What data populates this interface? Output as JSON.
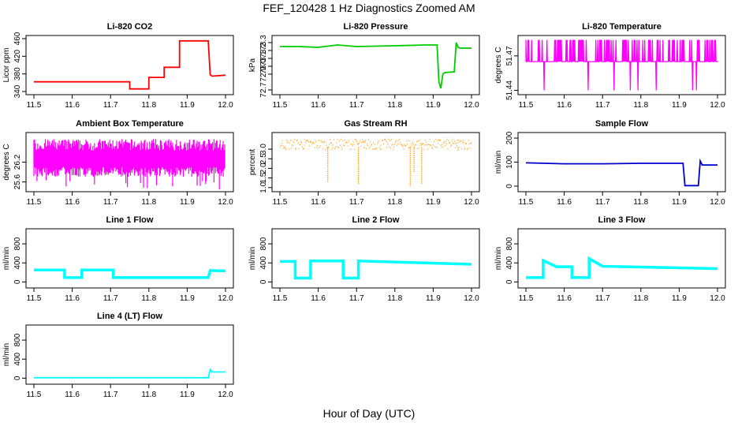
{
  "figure": {
    "title": "FEF_120428  1 Hz Diagnostics Zoomed AM",
    "xlabel": "Hour of Day (UTC)"
  },
  "chart_data": [
    {
      "type": "line",
      "title": "Li-820 CO2",
      "ylabel": "Licor ppm",
      "color": "#ff0000",
      "xlim": [
        11.5,
        12.0
      ],
      "ylim": [
        340,
        460
      ],
      "xticks": [
        "11.5",
        "11.6",
        "11.7",
        "11.8",
        "11.9",
        "12.0"
      ],
      "yticks": [
        "340",
        "380",
        "420",
        "460"
      ],
      "series": [
        {
          "name": "CO2",
          "x": [
            11.5,
            11.75,
            11.75,
            11.8,
            11.8,
            11.84,
            11.84,
            11.88,
            11.88,
            11.955,
            11.96,
            11.965,
            12.0
          ],
          "y": [
            362,
            362,
            346,
            346,
            372,
            372,
            395,
            395,
            455,
            455,
            378,
            375,
            377
          ]
        }
      ]
    },
    {
      "type": "line",
      "title": "Li-820 Pressure",
      "ylabel": "kPa",
      "color": "#00cc00",
      "xlim": [
        11.5,
        12.0
      ],
      "ylim": [
        72.68,
        73.35
      ],
      "xticks": [
        "11.5",
        "11.6",
        "11.7",
        "11.8",
        "11.9",
        "12.0"
      ],
      "yticks": [
        "72.7",
        "72.9",
        "73.0",
        "73.1",
        "73.2",
        "73.3"
      ],
      "series": [
        {
          "name": "Pressure",
          "x": [
            11.5,
            11.55,
            11.6,
            11.65,
            11.7,
            11.8,
            11.88,
            11.91,
            11.915,
            11.92,
            11.925,
            11.93,
            11.955,
            11.96,
            11.965,
            11.97,
            12.0
          ],
          "y": [
            73.25,
            73.25,
            73.24,
            73.27,
            73.25,
            73.26,
            73.27,
            73.27,
            72.8,
            72.72,
            72.9,
            72.92,
            72.93,
            73.3,
            73.24,
            73.23,
            73.23
          ]
        }
      ]
    },
    {
      "type": "line",
      "title": "Li-820 Temperature",
      "ylabel": "degrees C",
      "color": "#ff00ff",
      "xlim": [
        11.5,
        12.0
      ],
      "ylim": [
        51.439,
        51.485
      ],
      "xticks": [
        "11.5",
        "11.6",
        "11.7",
        "11.8",
        "11.9",
        "12.0"
      ],
      "yticks": [
        "51.44",
        "51.47"
      ],
      "series": [
        {
          "name": "Temperature",
          "x": [
            11.5,
            12.0
          ],
          "y": [
            51.465,
            51.465
          ]
        }
      ]
    },
    {
      "type": "line",
      "title": "Ambient Box Temperature",
      "ylabel": "degrees C",
      "color": "#ff00ff",
      "xlim": [
        11.5,
        12.0
      ],
      "ylim": [
        25.4,
        27.0
      ],
      "xticks": [
        "11.5",
        "11.6",
        "11.7",
        "11.8",
        "11.9",
        "12.0"
      ],
      "yticks": [
        "25.6",
        "26.2"
      ],
      "series": [
        {
          "name": "Box Temp",
          "x": [
            11.5,
            12.0
          ],
          "y": [
            26.3,
            26.3
          ]
        }
      ]
    },
    {
      "type": "scatter",
      "title": "Gas Stream RH",
      "ylabel": "percent",
      "color": "#ff9900",
      "xlim": [
        11.5,
        12.0
      ],
      "ylim": [
        0.95,
        3.7
      ],
      "xticks": [
        "11.5",
        "11.6",
        "11.7",
        "11.8",
        "11.9",
        "12.0"
      ],
      "yticks": [
        "1.0",
        "1.5",
        "2.0",
        "2.5",
        "3.0"
      ],
      "series": [
        {
          "name": "RH",
          "x": [
            11.5,
            12.0
          ],
          "y": [
            3.2,
            3.2
          ]
        }
      ]
    },
    {
      "type": "line",
      "title": "Sample Flow",
      "ylabel": "ml/min",
      "color": "#0000cc",
      "xlim": [
        11.5,
        12.0
      ],
      "ylim": [
        -10,
        210
      ],
      "xticks": [
        "11.5",
        "11.6",
        "11.7",
        "11.8",
        "11.9",
        "12.0"
      ],
      "yticks": [
        "0",
        "100",
        "200"
      ],
      "series": [
        {
          "name": "Sample Flow",
          "x": [
            11.5,
            11.6,
            11.7,
            11.8,
            11.91,
            11.915,
            11.95,
            11.955,
            11.96,
            12.0
          ],
          "y": [
            97,
            93,
            93,
            95,
            95,
            2,
            2,
            105,
            88,
            88
          ]
        }
      ]
    },
    {
      "type": "line",
      "title": "Line 1 Flow",
      "ylabel": "ml/min",
      "color": "#00ffff",
      "xlim": [
        11.5,
        12.0
      ],
      "ylim": [
        -60,
        1050
      ],
      "xticks": [
        "11.5",
        "11.6",
        "11.7",
        "11.8",
        "11.9",
        "12.0"
      ],
      "yticks": [
        "0",
        "400",
        "800"
      ],
      "series": [
        {
          "name": "Line 1",
          "x": [
            11.5,
            11.58,
            11.58,
            11.625,
            11.625,
            11.707,
            11.707,
            11.955,
            11.96,
            12.0
          ],
          "y": [
            250,
            250,
            90,
            90,
            250,
            250,
            90,
            90,
            240,
            230
          ]
        }
      ]
    },
    {
      "type": "line",
      "title": "Line 2 Flow",
      "ylabel": "ml/min",
      "color": "#00ffff",
      "xlim": [
        11.5,
        12.0
      ],
      "ylim": [
        -60,
        1050
      ],
      "xticks": [
        "11.5",
        "11.6",
        "11.7",
        "11.8",
        "11.9",
        "12.0"
      ],
      "yticks": [
        "0",
        "400",
        "800"
      ],
      "series": [
        {
          "name": "Line 2",
          "x": [
            11.5,
            11.54,
            11.54,
            11.58,
            11.58,
            11.665,
            11.665,
            11.705,
            11.705,
            12.0
          ],
          "y": [
            430,
            430,
            80,
            80,
            440,
            440,
            80,
            80,
            440,
            370
          ]
        }
      ]
    },
    {
      "type": "line",
      "title": "Line 3 Flow",
      "ylabel": "ml/min",
      "color": "#00ffff",
      "xlim": [
        11.5,
        12.0
      ],
      "ylim": [
        -60,
        1050
      ],
      "xticks": [
        "11.5",
        "11.6",
        "11.7",
        "11.8",
        "11.9",
        "12.0"
      ],
      "yticks": [
        "0",
        "400",
        "800"
      ],
      "series": [
        {
          "name": "Line 3",
          "x": [
            11.5,
            11.545,
            11.545,
            11.58,
            11.62,
            11.62,
            11.665,
            11.665,
            11.7,
            12.0
          ],
          "y": [
            90,
            90,
            450,
            320,
            320,
            90,
            90,
            490,
            330,
            280
          ]
        }
      ]
    },
    {
      "type": "line",
      "title": "Line 4 (LT) Flow",
      "ylabel": "ml/min",
      "color": "#00ffff",
      "xlim": [
        11.5,
        12.0
      ],
      "ylim": [
        -60,
        1050
      ],
      "xticks": [
        "11.5",
        "11.6",
        "11.7",
        "11.8",
        "11.9",
        "12.0"
      ],
      "yticks": [
        "0",
        "400",
        "800"
      ],
      "series": [
        {
          "name": "Line 4",
          "x": [
            11.5,
            11.955,
            11.96,
            11.965,
            12.0
          ],
          "y": [
            10,
            10,
            180,
            130,
            130
          ]
        }
      ]
    }
  ]
}
